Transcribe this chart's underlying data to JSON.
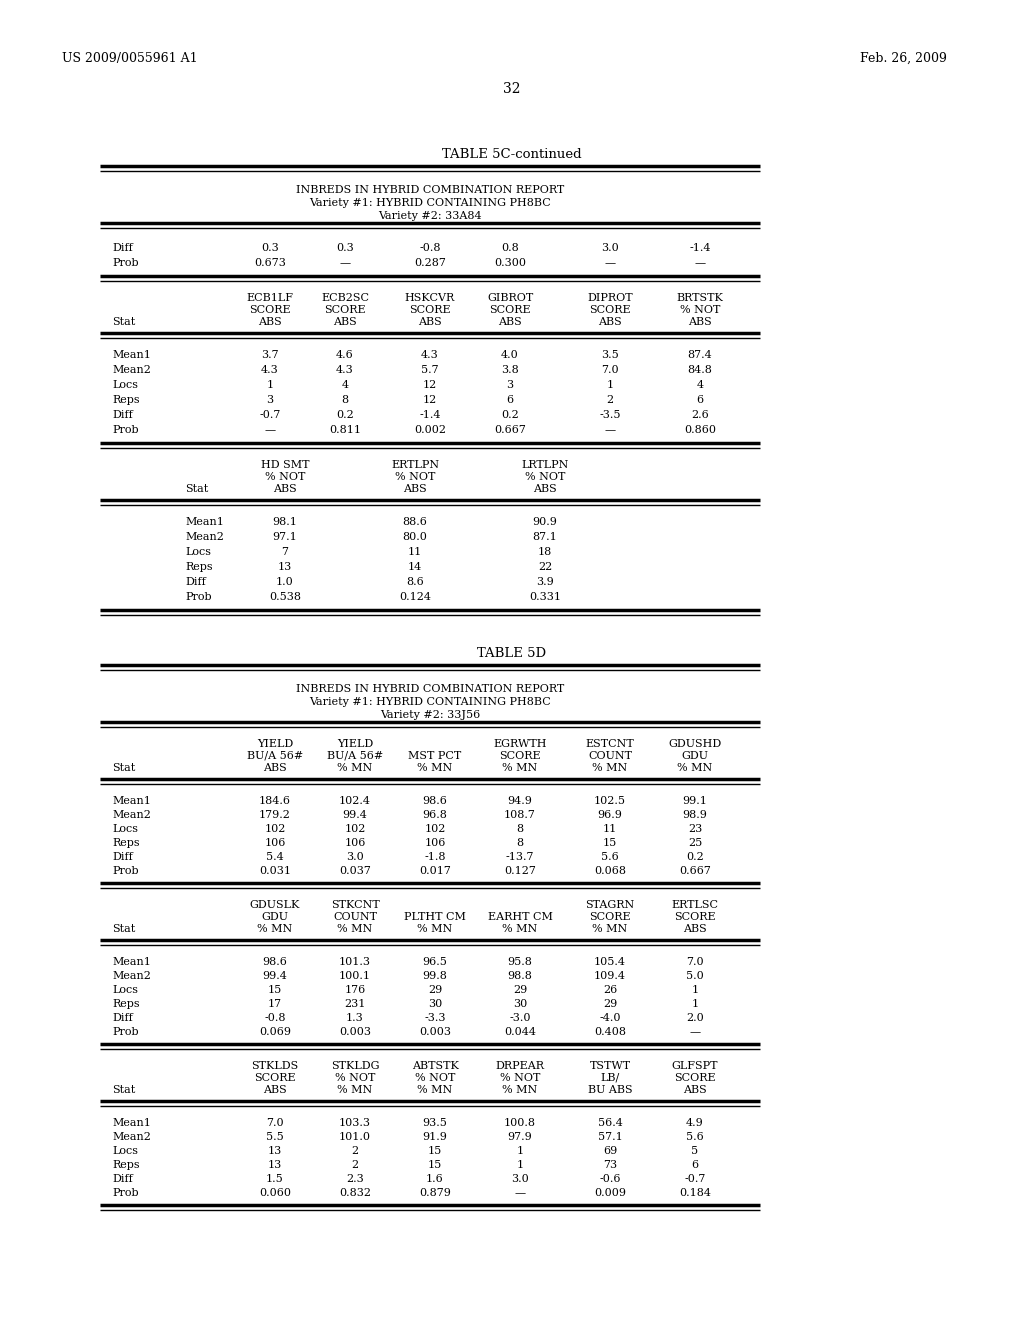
{
  "page_num": "32",
  "patent_left": "US 2009/0055961 A1",
  "patent_right": "Feb. 26, 2009",
  "table5c_title": "TABLE 5C-continued",
  "table5c_subtitle1": "INBREDS IN HYBRID COMBINATION REPORT",
  "table5c_subtitle2": "Variety #1: HYBRID CONTAINING PH8BC",
  "table5c_subtitle3": "Variety #2: 33A84",
  "table5d_title": "TABLE 5D",
  "table5d_subtitle1": "INBREDS IN HYBRID COMBINATION REPORT",
  "table5d_subtitle2": "Variety #1: HYBRID CONTAINING PH8BC",
  "table5d_subtitle3": "Variety #2: 33J56",
  "background": "#ffffff",
  "text_color": "#000000",
  "table5c_section1_rows": [
    [
      "Diff",
      "0.3",
      "0.3",
      "-0.8",
      "0.8",
      "3.0",
      "-1.4"
    ],
    [
      "Prob",
      "0.673",
      "—",
      "0.287",
      "0.300",
      "—",
      "—"
    ]
  ],
  "table5c_section2_headers": [
    [
      "",
      "ECB1LF",
      "ECB2SC",
      "HSKCVR",
      "GIBROT",
      "DIPROT",
      "BRTSTK"
    ],
    [
      "",
      "SCORE",
      "SCORE",
      "SCORE",
      "SCORE",
      "SCORE",
      "% NOT"
    ],
    [
      "Stat",
      "ABS",
      "ABS",
      "ABS",
      "ABS",
      "ABS",
      "ABS"
    ]
  ],
  "table5c_section2_rows": [
    [
      "Mean1",
      "3.7",
      "4.6",
      "4.3",
      "4.0",
      "3.5",
      "87.4"
    ],
    [
      "Mean2",
      "4.3",
      "4.3",
      "5.7",
      "3.8",
      "7.0",
      "84.8"
    ],
    [
      "Locs",
      "1",
      "4",
      "12",
      "3",
      "1",
      "4"
    ],
    [
      "Reps",
      "3",
      "8",
      "12",
      "6",
      "2",
      "6"
    ],
    [
      "Diff",
      "-0.7",
      "0.2",
      "-1.4",
      "0.2",
      "-3.5",
      "2.6"
    ],
    [
      "Prob",
      "—",
      "0.811",
      "0.002",
      "0.667",
      "—",
      "0.860"
    ]
  ],
  "table5c_section3_headers": [
    [
      "HD SMT",
      "ERTLPN",
      "LRTLPN"
    ],
    [
      "% NOT",
      "% NOT",
      "% NOT"
    ],
    [
      "ABS",
      "ABS",
      "ABS"
    ]
  ],
  "table5c_section3_stat": [
    "Stat",
    "Stat",
    "Stat"
  ],
  "table5c_section3_rows": [
    [
      "Mean1",
      "98.1",
      "88.6",
      "90.9"
    ],
    [
      "Mean2",
      "97.1",
      "80.0",
      "87.1"
    ],
    [
      "Locs",
      "7",
      "11",
      "18"
    ],
    [
      "Reps",
      "13",
      "14",
      "22"
    ],
    [
      "Diff",
      "1.0",
      "8.6",
      "3.9"
    ],
    [
      "Prob",
      "0.538",
      "0.124",
      "0.331"
    ]
  ],
  "table5d_section1_headers": [
    [
      "",
      "YIELD",
      "YIELD",
      "",
      "EGRWTH",
      "ESTCNT",
      "GDUSHD"
    ],
    [
      "",
      "BU/A 56#",
      "BU/A 56#",
      "MST PCT",
      "SCORE",
      "COUNT",
      "GDU"
    ],
    [
      "Stat",
      "ABS",
      "% MN",
      "% MN",
      "% MN",
      "% MN",
      "% MN"
    ]
  ],
  "table5d_section1_rows": [
    [
      "Mean1",
      "184.6",
      "102.4",
      "98.6",
      "94.9",
      "102.5",
      "99.1"
    ],
    [
      "Mean2",
      "179.2",
      "99.4",
      "96.8",
      "108.7",
      "96.9",
      "98.9"
    ],
    [
      "Locs",
      "102",
      "102",
      "102",
      "8",
      "11",
      "23"
    ],
    [
      "Reps",
      "106",
      "106",
      "106",
      "8",
      "15",
      "25"
    ],
    [
      "Diff",
      "5.4",
      "3.0",
      "-1.8",
      "-13.7",
      "5.6",
      "0.2"
    ],
    [
      "Prob",
      "0.031",
      "0.037",
      "0.017",
      "0.127",
      "0.068",
      "0.667"
    ]
  ],
  "table5d_section2_headers": [
    [
      "",
      "GDUSLK",
      "STKCNT",
      "",
      "",
      "STAGRN",
      "ERTLSC"
    ],
    [
      "",
      "GDU",
      "COUNT",
      "PLTHT CM",
      "EARHT CM",
      "SCORE",
      "SCORE"
    ],
    [
      "Stat",
      "% MN",
      "% MN",
      "% MN",
      "% MN",
      "% MN",
      "ABS"
    ]
  ],
  "table5d_section2_rows": [
    [
      "Mean1",
      "98.6",
      "101.3",
      "96.5",
      "95.8",
      "105.4",
      "7.0"
    ],
    [
      "Mean2",
      "99.4",
      "100.1",
      "99.8",
      "98.8",
      "109.4",
      "5.0"
    ],
    [
      "Locs",
      "15",
      "176",
      "29",
      "29",
      "26",
      "1"
    ],
    [
      "Reps",
      "17",
      "231",
      "30",
      "30",
      "29",
      "1"
    ],
    [
      "Diff",
      "-0.8",
      "1.3",
      "-3.3",
      "-3.0",
      "-4.0",
      "2.0"
    ],
    [
      "Prob",
      "0.069",
      "0.003",
      "0.003",
      "0.044",
      "0.408",
      "—"
    ]
  ],
  "table5d_section3_headers": [
    [
      "",
      "STKLDS",
      "STKLDG",
      "ABTSTK",
      "DRPEAR",
      "TSTWT",
      "GLFSPT"
    ],
    [
      "",
      "SCORE",
      "% NOT",
      "% NOT",
      "% NOT",
      "LB/",
      "SCORE"
    ],
    [
      "Stat",
      "ABS",
      "% MN",
      "% MN",
      "% MN",
      "BU ABS",
      "ABS"
    ]
  ],
  "table5d_section3_rows": [
    [
      "Mean1",
      "7.0",
      "103.3",
      "93.5",
      "100.8",
      "56.4",
      "4.9"
    ],
    [
      "Mean2",
      "5.5",
      "101.0",
      "91.9",
      "97.9",
      "57.1",
      "5.6"
    ],
    [
      "Locs",
      "13",
      "2",
      "15",
      "1",
      "69",
      "5"
    ],
    [
      "Reps",
      "13",
      "2",
      "15",
      "1",
      "73",
      "6"
    ],
    [
      "Diff",
      "1.5",
      "2.3",
      "1.6",
      "3.0",
      "-0.6",
      "-0.7"
    ],
    [
      "Prob",
      "0.060",
      "0.832",
      "0.879",
      "—",
      "0.009",
      "0.184"
    ]
  ]
}
